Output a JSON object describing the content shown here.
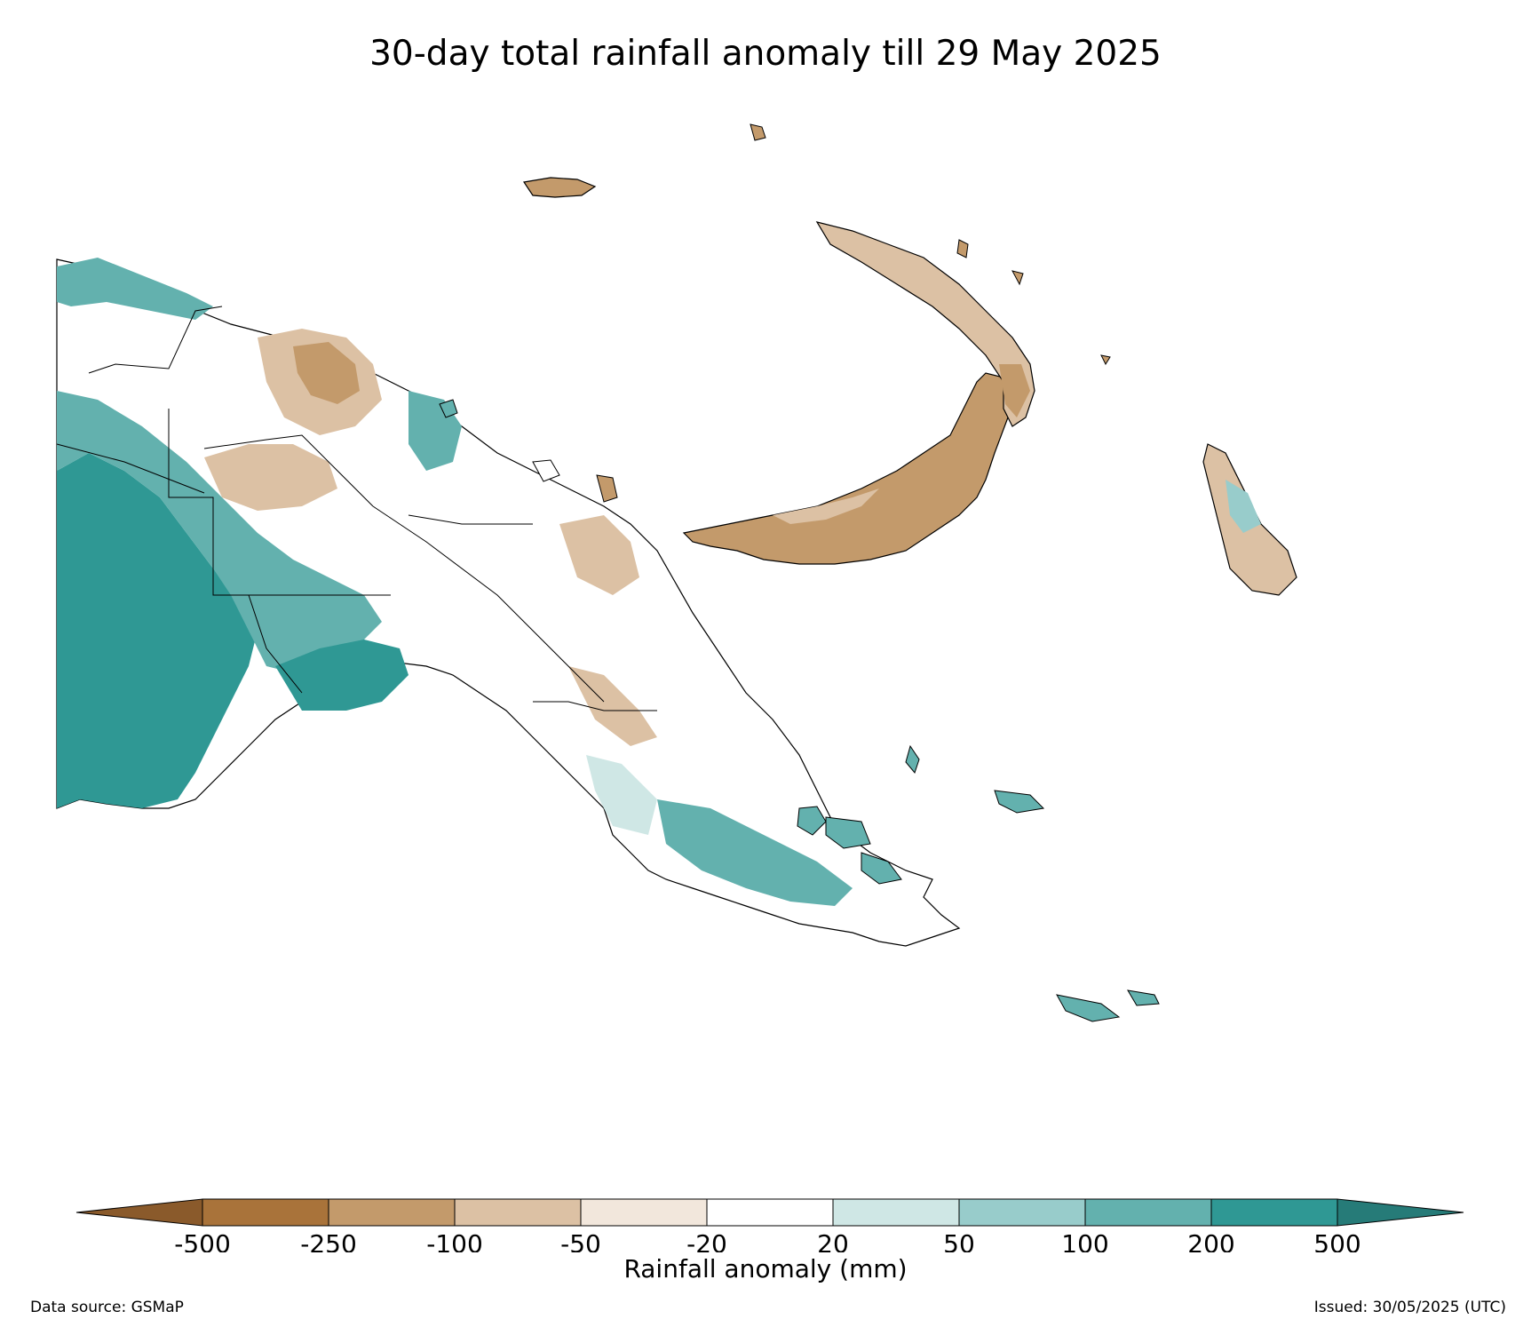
{
  "title": "30-day total rainfall anomaly till 29 May 2025",
  "colorbar": {
    "label": "Rainfall anomaly (mm)",
    "ticks": [
      "-500",
      "-250",
      "-100",
      "-50",
      "-20",
      "20",
      "50",
      "100",
      "200",
      "500"
    ],
    "colors": [
      "#a9733a",
      "#c39a6b",
      "#dcc1a4",
      "#f2e7dc",
      "#ffffff",
      "#cfe7e5",
      "#98cccb",
      "#63b1ae",
      "#2f9894"
    ],
    "extend_low_color": "#8a5a2b",
    "extend_high_color": "#267b78"
  },
  "footer": {
    "data_source": "Data source: GSMaP",
    "issued": "Issued: 30/05/2025 (UTC)"
  }
}
